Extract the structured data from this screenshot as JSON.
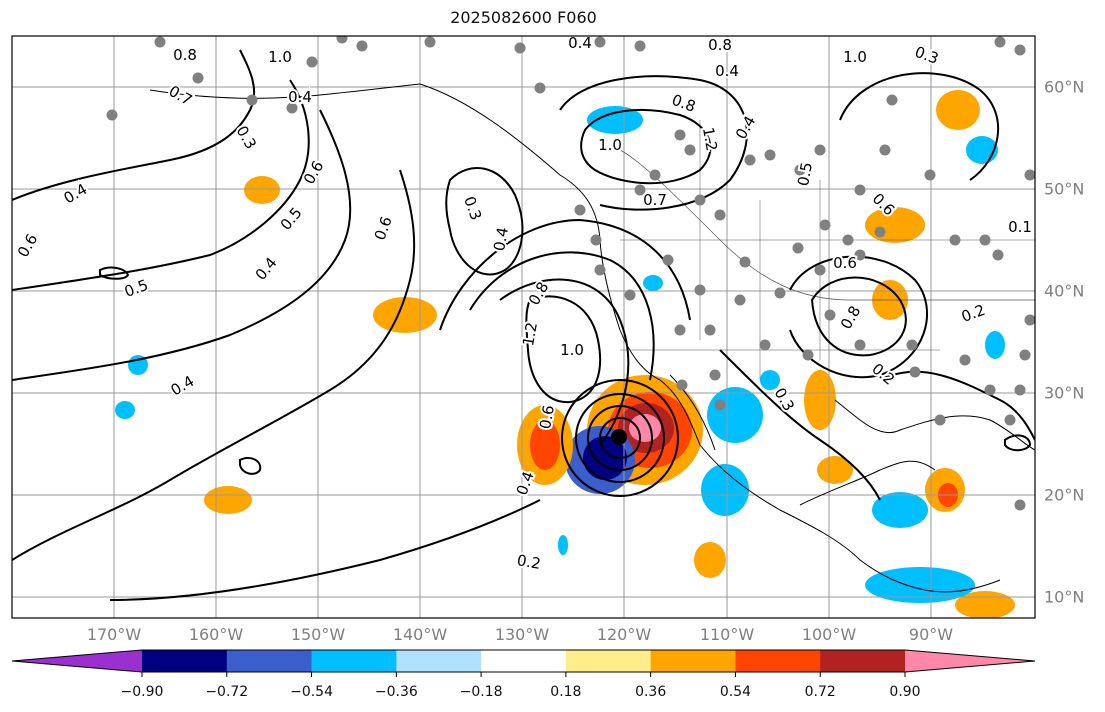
{
  "title": "2025082600 F060",
  "lon_labels": [
    "170°W",
    "160°W",
    "150°W",
    "140°W",
    "130°W",
    "120°W",
    "110°W",
    "100°W",
    "90°W"
  ],
  "lat_labels": [
    "60°N",
    "50°N",
    "40°N",
    "30°N",
    "20°N",
    "10°N"
  ],
  "contour_labels": [
    "0.4",
    "0.6",
    "0.7",
    "0.8",
    "1.0",
    "0.4",
    "0.3",
    "0.5",
    "0.6",
    "0.4",
    "0.5",
    "0.4",
    "0.6",
    "0.3",
    "0.4",
    "0.8",
    "1.2",
    "1.0",
    "0.6",
    "0.4",
    "0.2",
    "0.8",
    "1.2",
    "1.0",
    "0.4",
    "0.5",
    "0.7",
    "0.6",
    "0.8",
    "0.4",
    "0.2",
    "0.3",
    "0.3",
    "0.6",
    "0.2",
    "0.1",
    "0.4",
    "0.8",
    "1.0"
  ],
  "colorbar": {
    "ticks": [
      "−0.90",
      "−0.72",
      "−0.54",
      "−0.36",
      "−0.18",
      "0.18",
      "0.36",
      "0.54",
      "0.72",
      "0.90"
    ],
    "colors": [
      "#9b30d0",
      "#000080",
      "#3a5fcd",
      "#00bfff",
      "#afe0ff",
      "#ffffff",
      "#ffec8b",
      "#ffa500",
      "#ff4500",
      "#b22222",
      "#ff88aa"
    ]
  },
  "colors": {
    "warm": "#ffa500",
    "cool": "#00bfff",
    "grid": "#999999",
    "contour": "#000000",
    "storm_center": "#000000"
  }
}
